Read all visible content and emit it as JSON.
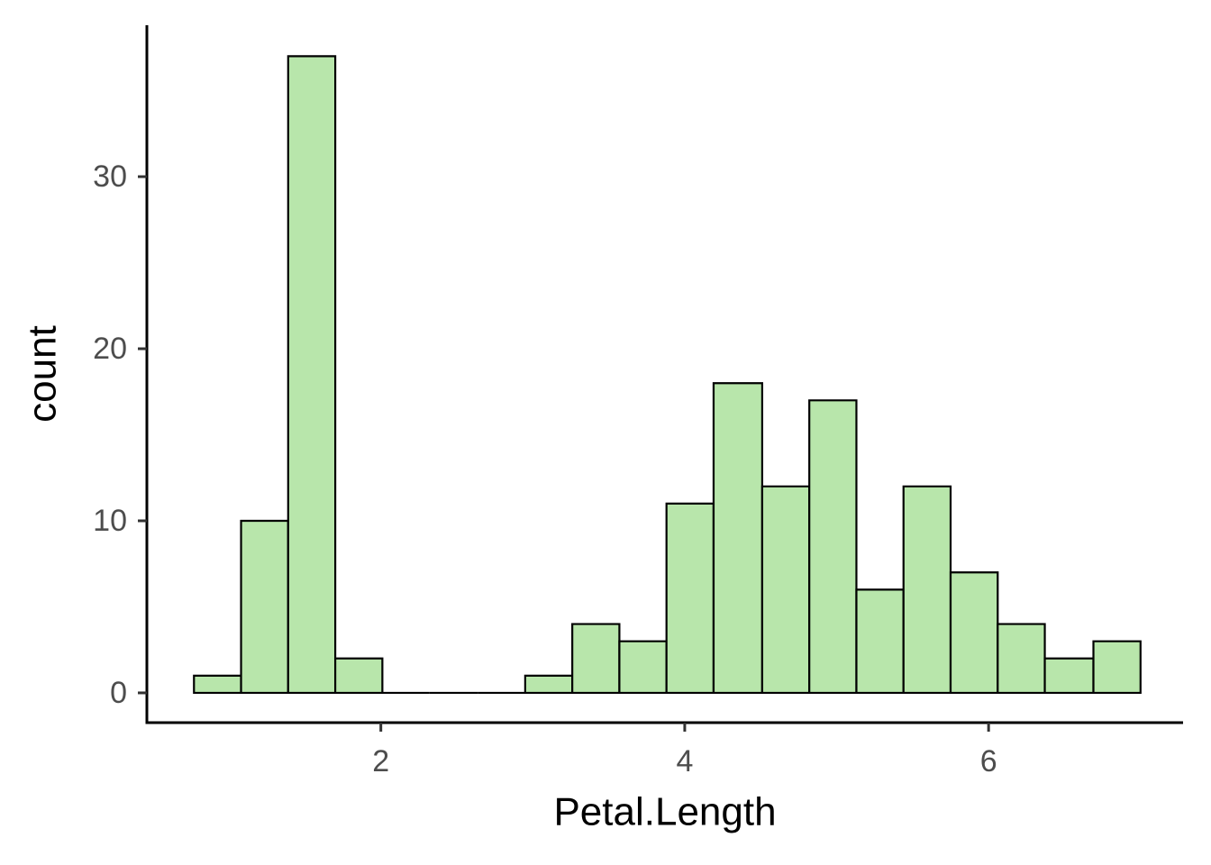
{
  "chart_data": {
    "type": "histogram",
    "x_label": "Petal.Length",
    "y_label": "count",
    "bins": [
      0.77,
      1.08,
      1.39,
      1.7,
      2.01,
      2.32,
      2.64,
      2.95,
      3.26,
      3.57,
      3.88,
      4.19,
      4.51,
      4.82,
      5.13,
      5.44,
      5.75,
      6.06,
      6.37,
      6.69,
      7.0
    ],
    "values": [
      1,
      10,
      37,
      2,
      0,
      0,
      0,
      1,
      4,
      3,
      11,
      18,
      12,
      17,
      6,
      12,
      7,
      4,
      2,
      3
    ],
    "color": "#b8e6ab",
    "edge_color": "#000000",
    "xlim": [
      0.46,
      7.28
    ],
    "ylim": [
      -1.73,
      38.8
    ],
    "xticks": [
      2,
      4,
      6
    ],
    "yticks": [
      0,
      10,
      20,
      30
    ],
    "grid": false
  }
}
